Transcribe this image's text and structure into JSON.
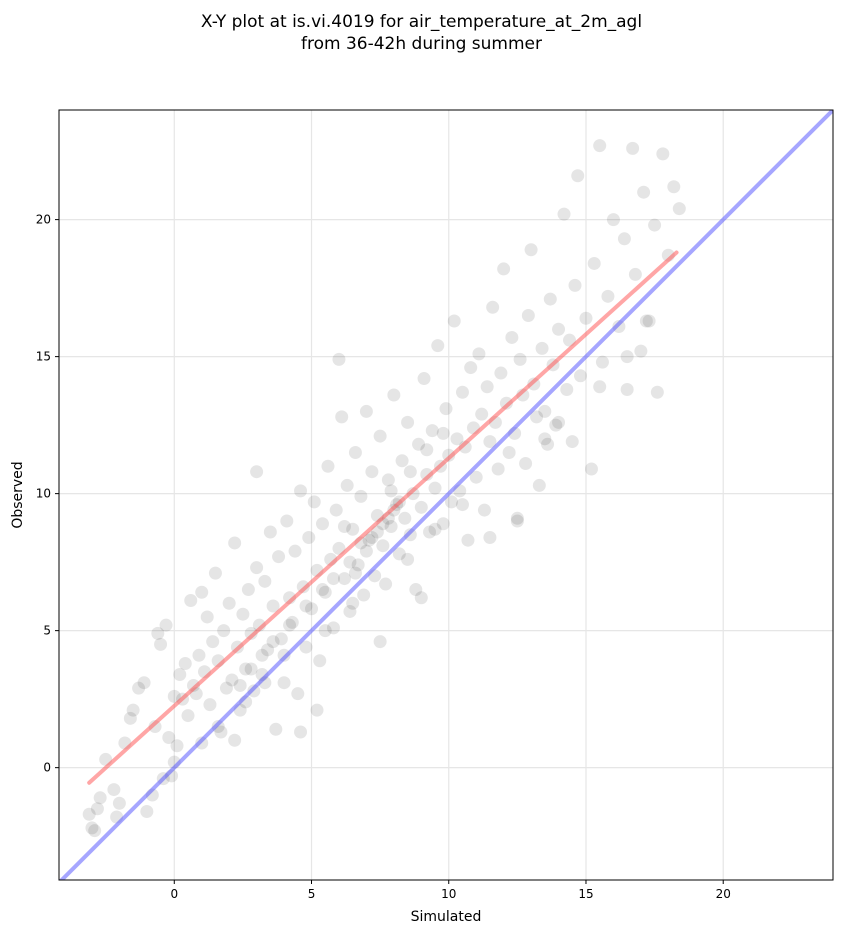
{
  "chart_data": {
    "type": "scatter",
    "title_line1": "X-Y plot at is.vi.4019 for air_temperature_at_2m_agl",
    "title_line2": "from 36-42h during summer",
    "xlabel": "Simulated",
    "ylabel": "Observed",
    "xlim": [
      -4.2,
      24.0
    ],
    "ylim": [
      -4.1,
      24.0
    ],
    "xticks": [
      0,
      5,
      10,
      15,
      20
    ],
    "yticks": [
      0,
      5,
      10,
      15,
      20
    ],
    "grid": true,
    "colors": {
      "points": "#000000",
      "fit_line": "#ff4d4d",
      "identity_line": "#4d4dff",
      "grid": "#e6e6e6"
    },
    "identity_line": {
      "x": [
        -4.2,
        24.0
      ],
      "y": [
        -4.2,
        24.0
      ]
    },
    "fit_line": {
      "x": [
        -3.1,
        18.3
      ],
      "y": [
        -0.55,
        18.8
      ]
    },
    "points": [
      [
        -3.1,
        -1.7
      ],
      [
        -3.0,
        -2.2
      ],
      [
        -2.8,
        -1.5
      ],
      [
        -2.7,
        -1.1
      ],
      [
        -2.9,
        -2.3
      ],
      [
        -2.5,
        0.3
      ],
      [
        -2.2,
        -0.8
      ],
      [
        -2.0,
        -1.3
      ],
      [
        -2.1,
        -1.8
      ],
      [
        -1.8,
        0.9
      ],
      [
        -1.6,
        1.8
      ],
      [
        -1.5,
        2.1
      ],
      [
        -1.3,
        2.9
      ],
      [
        -1.1,
        3.1
      ],
      [
        -1.0,
        -1.6
      ],
      [
        -0.8,
        -1.0
      ],
      [
        -0.7,
        1.5
      ],
      [
        -0.6,
        4.9
      ],
      [
        -0.5,
        4.5
      ],
      [
        -0.3,
        5.2
      ],
      [
        -0.2,
        1.1
      ],
      [
        -0.1,
        -0.3
      ],
      [
        0.0,
        2.6
      ],
      [
        0.1,
        0.8
      ],
      [
        0.2,
        3.4
      ],
      [
        0.3,
        2.5
      ],
      [
        0.4,
        3.8
      ],
      [
        0.5,
        1.9
      ],
      [
        0.6,
        6.1
      ],
      [
        0.7,
        3.0
      ],
      [
        0.8,
        2.7
      ],
      [
        0.9,
        4.1
      ],
      [
        1.0,
        6.4
      ],
      [
        1.1,
        3.5
      ],
      [
        1.2,
        5.5
      ],
      [
        1.3,
        2.3
      ],
      [
        1.4,
        4.6
      ],
      [
        1.5,
        7.1
      ],
      [
        1.6,
        3.9
      ],
      [
        1.7,
        1.3
      ],
      [
        1.8,
        5.0
      ],
      [
        1.9,
        2.9
      ],
      [
        2.0,
        6.0
      ],
      [
        2.1,
        3.2
      ],
      [
        2.2,
        8.2
      ],
      [
        2.3,
        4.4
      ],
      [
        2.4,
        2.1
      ],
      [
        2.5,
        5.6
      ],
      [
        2.6,
        3.6
      ],
      [
        2.7,
        6.5
      ],
      [
        2.8,
        4.9
      ],
      [
        2.9,
        2.8
      ],
      [
        3.0,
        7.3
      ],
      [
        3.1,
        5.2
      ],
      [
        3.2,
        3.4
      ],
      [
        3.3,
        6.8
      ],
      [
        3.4,
        4.3
      ],
      [
        3.5,
        8.6
      ],
      [
        3.6,
        5.9
      ],
      [
        3.7,
        1.4
      ],
      [
        3.8,
        7.7
      ],
      [
        3.9,
        4.7
      ],
      [
        4.0,
        3.1
      ],
      [
        4.1,
        9.0
      ],
      [
        4.2,
        6.2
      ],
      [
        4.3,
        5.3
      ],
      [
        4.4,
        7.9
      ],
      [
        4.5,
        2.7
      ],
      [
        4.6,
        10.1
      ],
      [
        4.7,
        6.6
      ],
      [
        4.8,
        4.4
      ],
      [
        4.9,
        8.4
      ],
      [
        5.0,
        5.8
      ],
      [
        5.1,
        9.7
      ],
      [
        5.2,
        7.2
      ],
      [
        5.3,
        3.9
      ],
      [
        5.4,
        8.9
      ],
      [
        5.5,
        6.4
      ],
      [
        5.6,
        11.0
      ],
      [
        5.7,
        7.6
      ],
      [
        5.8,
        5.1
      ],
      [
        5.9,
        9.4
      ],
      [
        6.0,
        8.0
      ],
      [
        6.1,
        12.8
      ],
      [
        6.2,
        6.9
      ],
      [
        6.3,
        10.3
      ],
      [
        6.4,
        5.7
      ],
      [
        6.5,
        8.7
      ],
      [
        6.6,
        11.5
      ],
      [
        6.7,
        7.4
      ],
      [
        6.8,
        9.9
      ],
      [
        6.9,
        6.3
      ],
      [
        7.0,
        13.0
      ],
      [
        7.1,
        8.3
      ],
      [
        7.2,
        10.8
      ],
      [
        7.3,
        7.0
      ],
      [
        7.4,
        9.2
      ],
      [
        7.5,
        12.1
      ],
      [
        7.6,
        8.1
      ],
      [
        7.7,
        6.7
      ],
      [
        7.8,
        10.5
      ],
      [
        7.9,
        8.8
      ],
      [
        8.0,
        13.6
      ],
      [
        8.1,
        9.6
      ],
      [
        8.2,
        7.8
      ],
      [
        8.3,
        11.2
      ],
      [
        8.4,
        9.1
      ],
      [
        8.5,
        12.6
      ],
      [
        8.6,
        8.5
      ],
      [
        8.7,
        10.0
      ],
      [
        8.8,
        6.5
      ],
      [
        8.9,
        11.8
      ],
      [
        9.0,
        9.5
      ],
      [
        9.1,
        14.2
      ],
      [
        9.2,
        10.7
      ],
      [
        9.3,
        8.6
      ],
      [
        9.4,
        12.3
      ],
      [
        9.5,
        10.2
      ],
      [
        9.6,
        15.4
      ],
      [
        9.7,
        11.0
      ],
      [
        9.8,
        8.9
      ],
      [
        9.9,
        13.1
      ],
      [
        10.0,
        11.4
      ],
      [
        10.1,
        9.7
      ],
      [
        10.2,
        16.3
      ],
      [
        10.3,
        12.0
      ],
      [
        10.4,
        10.1
      ],
      [
        10.5,
        13.7
      ],
      [
        10.6,
        11.7
      ],
      [
        10.7,
        8.3
      ],
      [
        10.8,
        14.6
      ],
      [
        10.9,
        12.4
      ],
      [
        11.0,
        10.6
      ],
      [
        11.1,
        15.1
      ],
      [
        11.2,
        12.9
      ],
      [
        11.3,
        9.4
      ],
      [
        11.4,
        13.9
      ],
      [
        11.5,
        11.9
      ],
      [
        11.6,
        16.8
      ],
      [
        11.7,
        12.6
      ],
      [
        11.8,
        10.9
      ],
      [
        11.9,
        14.4
      ],
      [
        12.0,
        18.2
      ],
      [
        12.1,
        13.3
      ],
      [
        12.2,
        11.5
      ],
      [
        12.3,
        15.7
      ],
      [
        12.4,
        12.2
      ],
      [
        12.5,
        9.1
      ],
      [
        12.6,
        14.9
      ],
      [
        12.7,
        13.6
      ],
      [
        12.8,
        11.1
      ],
      [
        12.9,
        16.5
      ],
      [
        13.0,
        18.9
      ],
      [
        13.1,
        14.0
      ],
      [
        13.2,
        12.8
      ],
      [
        13.3,
        10.3
      ],
      [
        13.4,
        15.3
      ],
      [
        13.5,
        13.0
      ],
      [
        13.6,
        11.8
      ],
      [
        13.7,
        17.1
      ],
      [
        13.8,
        14.7
      ],
      [
        13.9,
        12.5
      ],
      [
        14.0,
        16.0
      ],
      [
        14.2,
        20.2
      ],
      [
        14.3,
        13.8
      ],
      [
        14.4,
        15.6
      ],
      [
        14.5,
        11.9
      ],
      [
        14.6,
        17.6
      ],
      [
        14.7,
        21.6
      ],
      [
        14.8,
        14.3
      ],
      [
        15.0,
        16.4
      ],
      [
        15.2,
        10.9
      ],
      [
        15.3,
        18.4
      ],
      [
        15.5,
        22.7
      ],
      [
        15.6,
        14.8
      ],
      [
        15.8,
        17.2
      ],
      [
        16.0,
        20.0
      ],
      [
        16.2,
        16.1
      ],
      [
        16.4,
        19.3
      ],
      [
        16.5,
        13.8
      ],
      [
        16.7,
        22.6
      ],
      [
        16.8,
        18.0
      ],
      [
        17.0,
        15.2
      ],
      [
        17.1,
        21.0
      ],
      [
        17.3,
        16.3
      ],
      [
        17.5,
        19.8
      ],
      [
        17.6,
        13.7
      ],
      [
        17.8,
        22.4
      ],
      [
        18.0,
        18.7
      ],
      [
        18.2,
        21.2
      ],
      [
        18.4,
        20.4
      ],
      [
        5.2,
        2.1
      ],
      [
        4.6,
        1.3
      ],
      [
        6.0,
        14.9
      ],
      [
        3.0,
        10.8
      ],
      [
        2.2,
        1.0
      ],
      [
        7.5,
        4.6
      ],
      [
        9.0,
        6.2
      ],
      [
        11.5,
        8.4
      ],
      [
        12.5,
        9.0
      ],
      [
        0.0,
        0.2
      ],
      [
        -0.4,
        -0.4
      ],
      [
        1.0,
        0.9
      ],
      [
        1.6,
        1.5
      ],
      [
        2.6,
        2.4
      ],
      [
        3.3,
        3.1
      ],
      [
        4.0,
        4.1
      ],
      [
        5.5,
        5.0
      ],
      [
        6.5,
        6.0
      ],
      [
        8.5,
        7.6
      ],
      [
        9.5,
        8.7
      ],
      [
        10.5,
        9.6
      ],
      [
        13.5,
        12.0
      ],
      [
        14.0,
        12.6
      ],
      [
        15.5,
        13.9
      ],
      [
        16.5,
        15.0
      ],
      [
        17.2,
        16.3
      ],
      [
        6.8,
        8.2
      ],
      [
        7.2,
        8.4
      ],
      [
        7.6,
        8.9
      ],
      [
        8.0,
        9.4
      ],
      [
        6.4,
        7.5
      ],
      [
        5.8,
        6.9
      ],
      [
        7.0,
        7.9
      ],
      [
        7.4,
        8.6
      ],
      [
        7.8,
        9.1
      ],
      [
        8.2,
        9.7
      ],
      [
        6.6,
        7.1
      ],
      [
        5.4,
        6.5
      ],
      [
        4.8,
        5.9
      ],
      [
        4.2,
        5.2
      ],
      [
        3.6,
        4.6
      ],
      [
        3.2,
        4.1
      ],
      [
        2.8,
        3.6
      ],
      [
        2.4,
        3.0
      ],
      [
        6.2,
        8.8
      ],
      [
        7.9,
        10.1
      ],
      [
        8.6,
        10.8
      ],
      [
        9.2,
        11.6
      ],
      [
        9.8,
        12.2
      ]
    ]
  }
}
